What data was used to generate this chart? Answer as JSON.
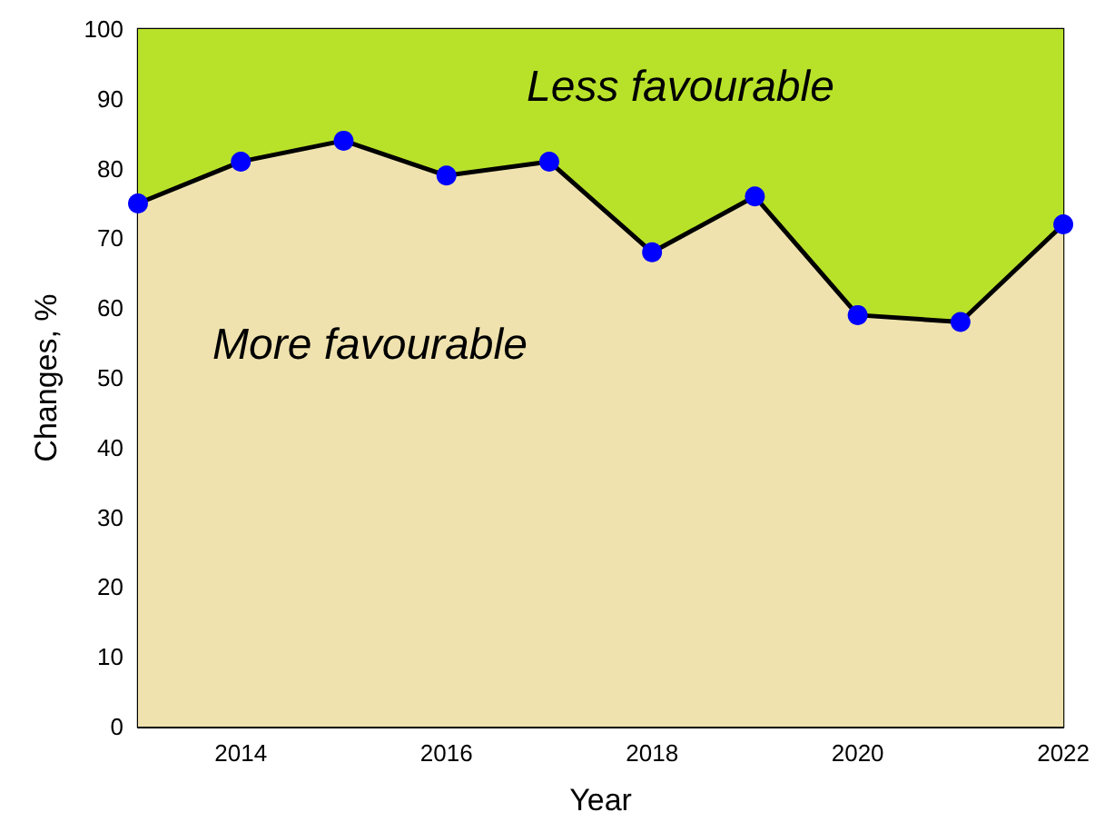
{
  "chart_data": {
    "type": "area",
    "xlabel": "Year",
    "ylabel": "Changes, %",
    "x": [
      2013,
      2014,
      2015,
      2016,
      2017,
      2018,
      2019,
      2020,
      2021,
      2022
    ],
    "series": [
      {
        "color": "#efe2ae",
        "values": [
          75,
          81,
          84,
          79,
          81,
          68,
          76,
          59,
          58,
          72
        ]
      }
    ],
    "xlim": [
      2013,
      2022
    ],
    "xticks": [
      2014,
      2016,
      2018,
      2020,
      2022
    ],
    "ylim": [
      0,
      100
    ],
    "yticks": [
      0,
      10,
      20,
      30,
      40,
      50,
      60,
      70,
      80,
      90,
      100
    ],
    "bands": [
      {
        "axis": "y",
        "from": 0,
        "to": 100,
        "color": "#b8e22a"
      }
    ],
    "annotations": [
      "Less favourable",
      "More favourable"
    ],
    "marker": "circle",
    "line_style": "solid",
    "grid": false
  }
}
